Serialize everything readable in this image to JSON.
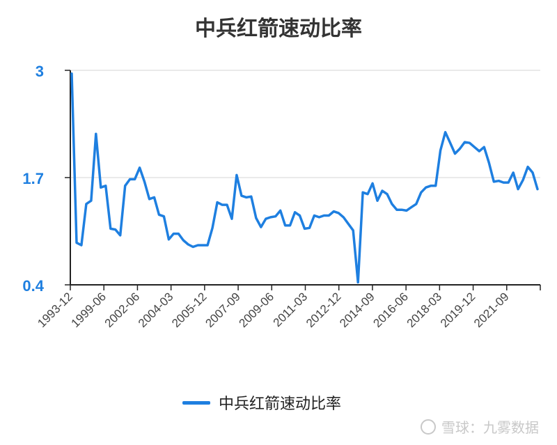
{
  "chart_data": {
    "type": "line",
    "title": "中兵红箭速动比率",
    "xlabel": "",
    "ylabel": "",
    "ylim": [
      0.4,
      3
    ],
    "yticks": [
      "3",
      "1.7",
      "0.4"
    ],
    "xtick_labels": [
      "1993-12",
      "1999-06",
      "2002-06",
      "2004-03",
      "2005-12",
      "2007-09",
      "2009-06",
      "2011-03",
      "2012-12",
      "2014-09",
      "2016-06",
      "2018-03",
      "2019-12",
      "2021-09"
    ],
    "grid": true,
    "legend_position": "bottom",
    "series": [
      {
        "name": "中兵红箭速动比率",
        "color": "#1e7fe0",
        "values": [
          2.96,
          0.91,
          0.88,
          1.38,
          1.42,
          2.23,
          1.58,
          1.6,
          1.08,
          1.07,
          1.0,
          1.6,
          1.68,
          1.68,
          1.82,
          1.65,
          1.44,
          1.46,
          1.25,
          1.23,
          0.95,
          1.02,
          1.02,
          0.94,
          0.89,
          0.86,
          0.88,
          0.88,
          0.88,
          1.09,
          1.4,
          1.37,
          1.37,
          1.2,
          1.73,
          1.48,
          1.46,
          1.47,
          1.21,
          1.1,
          1.2,
          1.22,
          1.23,
          1.3,
          1.12,
          1.12,
          1.28,
          1.24,
          1.08,
          1.09,
          1.24,
          1.22,
          1.24,
          1.24,
          1.29,
          1.27,
          1.22,
          1.14,
          1.06,
          0.43,
          1.52,
          1.5,
          1.63,
          1.42,
          1.54,
          1.5,
          1.38,
          1.31,
          1.31,
          1.3,
          1.34,
          1.38,
          1.52,
          1.58,
          1.6,
          1.6,
          2.03,
          2.25,
          2.12,
          1.99,
          2.05,
          2.13,
          2.12,
          2.07,
          2.02,
          2.07,
          1.88,
          1.65,
          1.66,
          1.64,
          1.64,
          1.76,
          1.56,
          1.67,
          1.83,
          1.76,
          1.56
        ]
      }
    ]
  },
  "legend": {
    "label": "中兵红箭速动比率",
    "color": "#1e7fe0"
  },
  "watermark": {
    "text": "雪球：九雾数据"
  }
}
